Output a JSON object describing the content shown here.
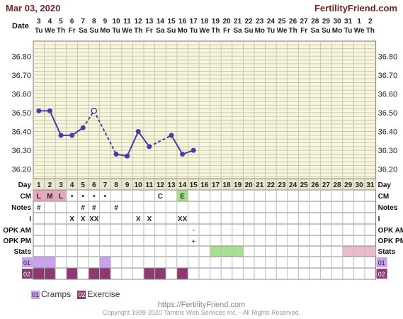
{
  "header": {
    "date": "Mar 03, 2020",
    "brand": "FertilityFriend.com",
    "date_row_label": "Date"
  },
  "chart_data": {
    "type": "line",
    "ylim": [
      36.15,
      36.88
    ],
    "yticks": [
      "36.20",
      "36.30",
      "36.40",
      "36.50",
      "36.60",
      "36.70",
      "36.80"
    ],
    "dates": [
      "3",
      "4",
      "5",
      "6",
      "7",
      "8",
      "9",
      "10",
      "11",
      "12",
      "13",
      "14",
      "15",
      "16",
      "17",
      "18",
      "19",
      "20",
      "21",
      "22",
      "23",
      "24",
      "25",
      "26",
      "27",
      "28",
      "29",
      "30",
      "31",
      "1",
      "2"
    ],
    "weekdays": [
      "Tu",
      "We",
      "Th",
      "Fr",
      "Sa",
      "Su",
      "Mo",
      "Tu",
      "We",
      "Th",
      "Fr",
      "Sa",
      "Su",
      "Mo",
      "Tu",
      "We",
      "Th",
      "Fr",
      "Sa",
      "Su",
      "Mo",
      "Tu",
      "We",
      "Th",
      "Fr",
      "Sa",
      "Su",
      "Mo",
      "Tu",
      "We",
      "Th"
    ],
    "days": [
      "1",
      "2",
      "3",
      "4",
      "5",
      "6",
      "7",
      "8",
      "9",
      "10",
      "11",
      "12",
      "13",
      "14",
      "15",
      "16",
      "17",
      "18",
      "19",
      "20",
      "21",
      "22",
      "23",
      "24",
      "25",
      "26",
      "27",
      "28",
      "29",
      "30",
      "31"
    ],
    "temps": [
      36.51,
      36.51,
      36.38,
      36.38,
      36.42,
      36.51,
      null,
      36.28,
      36.27,
      36.4,
      36.32,
      null,
      36.38,
      36.28,
      36.3
    ],
    "open_points": [
      5
    ],
    "dashed_segments": [
      [
        4,
        5
      ],
      [
        5,
        7
      ],
      [
        10,
        12
      ]
    ],
    "series_color": "#4a3aa8",
    "row_labels": [
      "Day",
      "CM",
      "Notes",
      "I",
      "OPK AM",
      "OPK PM",
      "Stats",
      "01",
      "02"
    ],
    "cm": [
      {
        "day": 1,
        "text": "L",
        "bg": "#e8a7b8"
      },
      {
        "day": 2,
        "text": "M",
        "bg": "#e8a7b8"
      },
      {
        "day": 3,
        "text": "L",
        "bg": "#e8a7b8"
      },
      {
        "day": 4,
        "text": "•",
        "bg": ""
      },
      {
        "day": 5,
        "text": "•",
        "bg": ""
      },
      {
        "day": 6,
        "text": "•",
        "bg": ""
      },
      {
        "day": 7,
        "text": "•",
        "bg": ""
      },
      {
        "day": 12,
        "text": "C",
        "bg": ""
      },
      {
        "day": 14,
        "text": "E",
        "bg": "#a8e08f"
      }
    ],
    "notes": [
      {
        "day": 1,
        "text": "#"
      },
      {
        "day": 5,
        "text": "#"
      },
      {
        "day": 6,
        "text": "#"
      },
      {
        "day": 8,
        "text": "#"
      }
    ],
    "intercourse": [
      {
        "day": 4,
        "text": "X"
      },
      {
        "day": 5,
        "text": "X"
      },
      {
        "day": 6,
        "text": "XX"
      },
      {
        "day": 10,
        "text": "X"
      },
      {
        "day": 11,
        "text": "X"
      },
      {
        "day": 14,
        "text": "XX"
      }
    ],
    "opk_am": [
      {
        "day": 15,
        "text": "-"
      }
    ],
    "opk_pm": [
      {
        "day": 15,
        "text": "+"
      }
    ],
    "stats_green": [
      17,
      18,
      19
    ],
    "stats_pink": [
      29,
      30,
      31
    ],
    "symptom01_days": [
      1,
      2,
      7
    ],
    "symptom02_days": [
      1,
      2,
      4,
      6,
      7,
      11,
      12,
      14
    ],
    "colors": {
      "panel_bg": "#f7f5dc",
      "grid": "#c9c7b0",
      "symptom01": "#c8a2f0",
      "symptom02": "#8e3a71",
      "label_bg": "#e8e6cc",
      "green": "#a8e08f",
      "pink": "#e8bcc8"
    }
  },
  "legend": [
    {
      "code": "01",
      "label": "Cramps"
    },
    {
      "code": "02",
      "label": "Exercise"
    }
  ],
  "footer": {
    "url": "https://FertilityFriend.com",
    "copyright": "Copyright 1998-2020 Tamtris Web Services Inc. - All Rights Reserved."
  }
}
